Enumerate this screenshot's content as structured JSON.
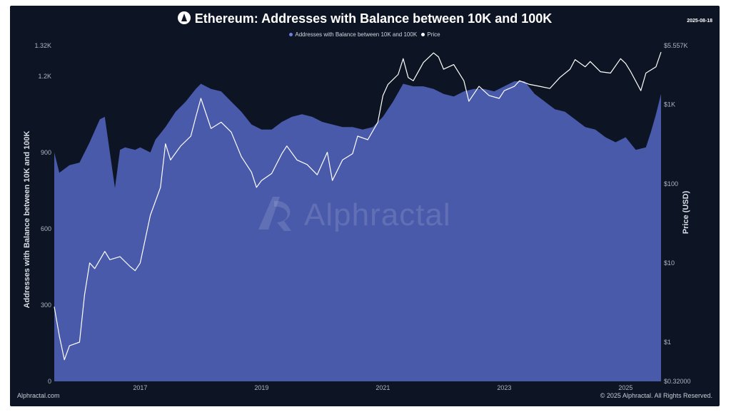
{
  "header": {
    "title": "Ethereum: Addresses with Balance between 10K and 100K",
    "date": "2025-08-18"
  },
  "footer": {
    "left": "Alphractal.com",
    "right": "© 2025 Alphractal. All Rights Reserved."
  },
  "watermark": "Alphractal",
  "colors": {
    "background": "#0d1524",
    "area": "#4a5aaa",
    "price": "#ffffff",
    "axis_text": "#aeb4c2"
  },
  "icons": {
    "logo": "ethereum-icon",
    "watermark": "alphractal-logo-icon"
  },
  "chart_data": {
    "type": "area",
    "xlabel": "",
    "ylabel": "Addresses with Balance between 10K and 100K",
    "y2label": "Price (USD)",
    "legend_position": "top-center",
    "grid": false,
    "x_ticks": [
      "2017",
      "2019",
      "2021",
      "2023",
      "2025"
    ],
    "y_ticks": [
      "0",
      "300",
      "600",
      "900",
      "1.2K",
      "1.32K"
    ],
    "y2_ticks": [
      "$0.32000",
      "$1",
      "$10",
      "$100",
      "$1K",
      "$5.557K"
    ],
    "ylim": [
      0,
      1320
    ],
    "y2lim": [
      0.32,
      5557
    ],
    "y2scale": "log",
    "xlim": [
      "2015-08",
      "2025-08"
    ],
    "series": [
      {
        "name": "Addresses with Balance between 10K and 100K",
        "axis": "left",
        "type": "area",
        "color": "#4a5aaa",
        "points": [
          [
            "2015-08",
            900
          ],
          [
            "2015-09",
            820
          ],
          [
            "2015-11",
            850
          ],
          [
            "2016-01",
            860
          ],
          [
            "2016-03",
            940
          ],
          [
            "2016-05",
            1030
          ],
          [
            "2016-06",
            1040
          ],
          [
            "2016-07",
            900
          ],
          [
            "2016-08",
            760
          ],
          [
            "2016-09",
            910
          ],
          [
            "2016-10",
            920
          ],
          [
            "2016-12",
            910
          ],
          [
            "2017-01",
            920
          ],
          [
            "2017-03",
            900
          ],
          [
            "2017-04",
            950
          ],
          [
            "2017-06",
            1000
          ],
          [
            "2017-08",
            1060
          ],
          [
            "2017-10",
            1100
          ],
          [
            "2017-12",
            1150
          ],
          [
            "2018-01",
            1170
          ],
          [
            "2018-03",
            1150
          ],
          [
            "2018-05",
            1140
          ],
          [
            "2018-07",
            1100
          ],
          [
            "2018-09",
            1060
          ],
          [
            "2018-11",
            1010
          ],
          [
            "2019-01",
            990
          ],
          [
            "2019-03",
            990
          ],
          [
            "2019-05",
            1020
          ],
          [
            "2019-07",
            1040
          ],
          [
            "2019-09",
            1050
          ],
          [
            "2019-11",
            1040
          ],
          [
            "2020-01",
            1020
          ],
          [
            "2020-03",
            1010
          ],
          [
            "2020-05",
            1000
          ],
          [
            "2020-07",
            1000
          ],
          [
            "2020-09",
            990
          ],
          [
            "2020-11",
            1000
          ],
          [
            "2021-01",
            1040
          ],
          [
            "2021-03",
            1100
          ],
          [
            "2021-05",
            1170
          ],
          [
            "2021-07",
            1160
          ],
          [
            "2021-09",
            1160
          ],
          [
            "2021-11",
            1150
          ],
          [
            "2022-01",
            1130
          ],
          [
            "2022-03",
            1120
          ],
          [
            "2022-05",
            1140
          ],
          [
            "2022-07",
            1150
          ],
          [
            "2022-09",
            1150
          ],
          [
            "2022-11",
            1140
          ],
          [
            "2023-01",
            1160
          ],
          [
            "2023-03",
            1180
          ],
          [
            "2023-05",
            1180
          ],
          [
            "2023-07",
            1130
          ],
          [
            "2023-09",
            1100
          ],
          [
            "2023-11",
            1070
          ],
          [
            "2024-01",
            1060
          ],
          [
            "2024-03",
            1030
          ],
          [
            "2024-05",
            1000
          ],
          [
            "2024-07",
            990
          ],
          [
            "2024-09",
            960
          ],
          [
            "2024-11",
            940
          ],
          [
            "2025-01",
            960
          ],
          [
            "2025-03",
            910
          ],
          [
            "2025-05",
            920
          ],
          [
            "2025-06",
            980
          ],
          [
            "2025-07",
            1050
          ],
          [
            "2025-08",
            1130
          ]
        ]
      },
      {
        "name": "Price",
        "axis": "right",
        "type": "line",
        "color": "#ffffff",
        "points": [
          [
            "2015-08",
            2.8
          ],
          [
            "2015-09",
            1.2
          ],
          [
            "2015-10",
            0.6
          ],
          [
            "2015-11",
            0.9
          ],
          [
            "2016-01",
            1.0
          ],
          [
            "2016-02",
            4.0
          ],
          [
            "2016-03",
            10.0
          ],
          [
            "2016-04",
            8.5
          ],
          [
            "2016-06",
            14.0
          ],
          [
            "2016-07",
            11.0
          ],
          [
            "2016-09",
            12.0
          ],
          [
            "2016-11",
            9.0
          ],
          [
            "2016-12",
            8.0
          ],
          [
            "2017-01",
            10.0
          ],
          [
            "2017-03",
            40.0
          ],
          [
            "2017-05",
            90.0
          ],
          [
            "2017-06",
            320.0
          ],
          [
            "2017-07",
            200.0
          ],
          [
            "2017-09",
            300.0
          ],
          [
            "2017-11",
            400.0
          ],
          [
            "2017-12",
            700.0
          ],
          [
            "2018-01",
            1200.0
          ],
          [
            "2018-03",
            500.0
          ],
          [
            "2018-05",
            600.0
          ],
          [
            "2018-07",
            450.0
          ],
          [
            "2018-09",
            220.0
          ],
          [
            "2018-11",
            140.0
          ],
          [
            "2018-12",
            90.0
          ],
          [
            "2019-01",
            110.0
          ],
          [
            "2019-03",
            135.0
          ],
          [
            "2019-05",
            240.0
          ],
          [
            "2019-06",
            300.0
          ],
          [
            "2019-08",
            200.0
          ],
          [
            "2019-10",
            175.0
          ],
          [
            "2019-12",
            130.0
          ],
          [
            "2020-02",
            250.0
          ],
          [
            "2020-03",
            110.0
          ],
          [
            "2020-05",
            200.0
          ],
          [
            "2020-07",
            240.0
          ],
          [
            "2020-08",
            400.0
          ],
          [
            "2020-10",
            360.0
          ],
          [
            "2020-12",
            600.0
          ],
          [
            "2021-01",
            1300.0
          ],
          [
            "2021-02",
            1800.0
          ],
          [
            "2021-04",
            2400.0
          ],
          [
            "2021-05",
            3800.0
          ],
          [
            "2021-06",
            2200.0
          ],
          [
            "2021-07",
            2000.0
          ],
          [
            "2021-09",
            3400.0
          ],
          [
            "2021-11",
            4500.0
          ],
          [
            "2021-12",
            4000.0
          ],
          [
            "2022-01",
            2800.0
          ],
          [
            "2022-03",
            3200.0
          ],
          [
            "2022-05",
            2000.0
          ],
          [
            "2022-06",
            1100.0
          ],
          [
            "2022-08",
            1700.0
          ],
          [
            "2022-10",
            1300.0
          ],
          [
            "2022-12",
            1200.0
          ],
          [
            "2023-01",
            1500.0
          ],
          [
            "2023-03",
            1700.0
          ],
          [
            "2023-04",
            2000.0
          ],
          [
            "2023-06",
            1800.0
          ],
          [
            "2023-08",
            1700.0
          ],
          [
            "2023-10",
            1600.0
          ],
          [
            "2023-12",
            2200.0
          ],
          [
            "2024-02",
            2800.0
          ],
          [
            "2024-03",
            3700.0
          ],
          [
            "2024-05",
            3000.0
          ],
          [
            "2024-06",
            3500.0
          ],
          [
            "2024-08",
            2600.0
          ],
          [
            "2024-10",
            2500.0
          ],
          [
            "2024-12",
            3800.0
          ],
          [
            "2025-01",
            3300.0
          ],
          [
            "2025-02",
            2600.0
          ],
          [
            "2025-04",
            1500.0
          ],
          [
            "2025-05",
            2500.0
          ],
          [
            "2025-07",
            3000.0
          ],
          [
            "2025-08",
            4600.0
          ]
        ]
      }
    ]
  }
}
